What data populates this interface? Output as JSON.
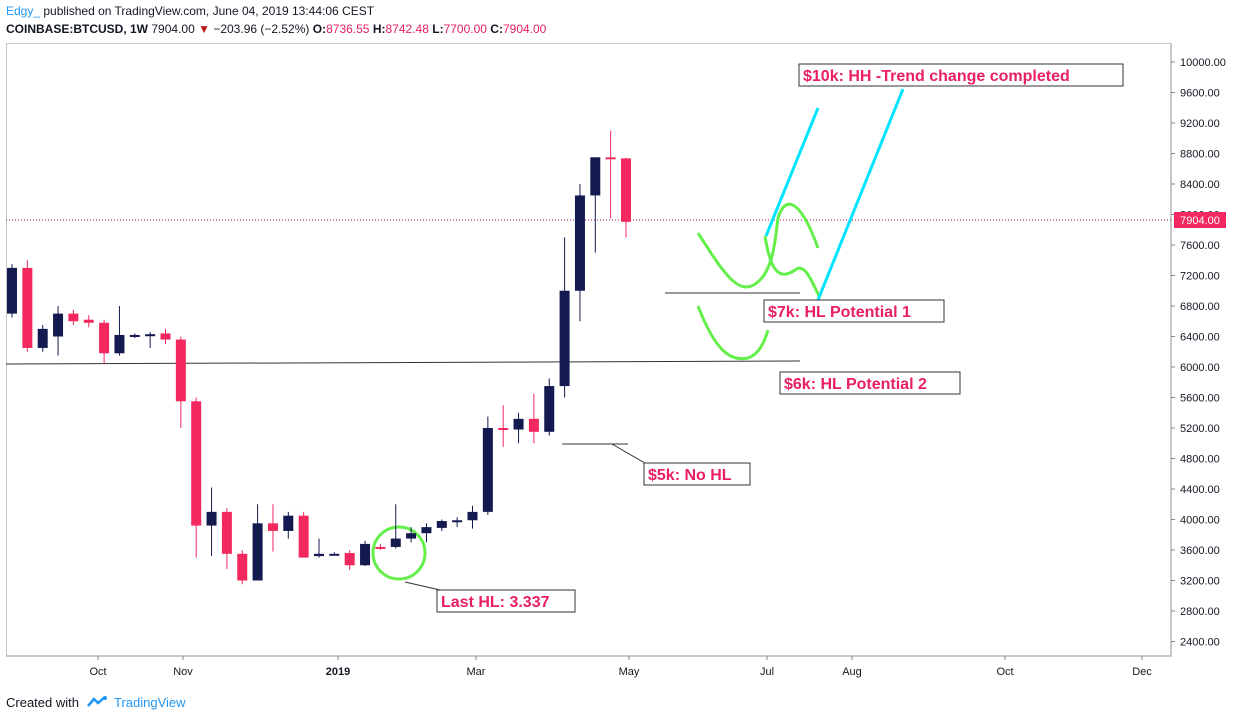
{
  "header": {
    "user": "Edgy_",
    "published_text": "published on TradingView.com, June 04, 2019 13:44:06 CEST",
    "symbol": "COINBASE:BTCUSD, 1W",
    "last": "7904.00",
    "change_arrow": "▼",
    "change": "−203.96 (−2.52%)",
    "o_label": "O:",
    "o_value": "8736.55",
    "h_label": "H:",
    "h_value": "8742.48",
    "l_label": "L:",
    "l_value": "7700.00",
    "c_label": "C:",
    "c_value": "7904.00"
  },
  "footer": {
    "created_with": "Created with",
    "brand": "TradingView"
  },
  "colors": {
    "up": "#131a4f",
    "down": "#f2285f",
    "annotation": "#e91e63",
    "cyan": "#00e5ff",
    "green": "#64ef4a",
    "price_line": "#9c1b5b"
  },
  "chart_data": {
    "type": "candlestick",
    "symbol": "COINBASE:BTCUSD",
    "interval": "1W",
    "ylim": [
      2000,
      10500
    ],
    "y_ticks": [
      "10000.00",
      "9600.00",
      "9200.00",
      "8800.00",
      "8400.00",
      "8000.00",
      "7600.00",
      "7200.00",
      "6800.00",
      "6400.00",
      "6000.00",
      "5600.00",
      "5200.00",
      "4800.00",
      "4400.00",
      "4000.00",
      "3600.00",
      "3200.00",
      "2800.00",
      "2400.00"
    ],
    "x_ticks": [
      "Oct",
      "Nov",
      "2019",
      "Mar",
      "May",
      "Jul",
      "Aug",
      "Oct",
      "Dec"
    ],
    "current_price_label": "7904.00",
    "candles": [
      {
        "o": 6700,
        "h": 7350,
        "l": 6650,
        "c": 7300
      },
      {
        "o": 7300,
        "h": 7400,
        "l": 6200,
        "c": 6250
      },
      {
        "o": 6250,
        "h": 6550,
        "l": 6200,
        "c": 6500
      },
      {
        "o": 6400,
        "h": 6800,
        "l": 6150,
        "c": 6700
      },
      {
        "o": 6700,
        "h": 6750,
        "l": 6550,
        "c": 6600
      },
      {
        "o": 6620,
        "h": 6680,
        "l": 6520,
        "c": 6580
      },
      {
        "o": 6580,
        "h": 6620,
        "l": 6050,
        "c": 6180
      },
      {
        "o": 6180,
        "h": 6800,
        "l": 6150,
        "c": 6420
      },
      {
        "o": 6410,
        "h": 6440,
        "l": 6380,
        "c": 6420
      },
      {
        "o": 6420,
        "h": 6460,
        "l": 6250,
        "c": 6430
      },
      {
        "o": 6440,
        "h": 6500,
        "l": 6300,
        "c": 6360
      },
      {
        "o": 6360,
        "h": 6400,
        "l": 5200,
        "c": 5550
      },
      {
        "o": 5550,
        "h": 5600,
        "l": 3500,
        "c": 3920
      },
      {
        "o": 3920,
        "h": 4420,
        "l": 3520,
        "c": 4100
      },
      {
        "o": 4100,
        "h": 4150,
        "l": 3350,
        "c": 3550
      },
      {
        "o": 3550,
        "h": 3600,
        "l": 3150,
        "c": 3200
      },
      {
        "o": 3200,
        "h": 4200,
        "l": 3200,
        "c": 3950
      },
      {
        "o": 3950,
        "h": 4200,
        "l": 3580,
        "c": 3850
      },
      {
        "o": 3850,
        "h": 4100,
        "l": 3750,
        "c": 4050
      },
      {
        "o": 4050,
        "h": 4100,
        "l": 3550,
        "c": 3500
      },
      {
        "o": 3520,
        "h": 3750,
        "l": 3500,
        "c": 3550
      },
      {
        "o": 3550,
        "h": 3570,
        "l": 3530,
        "c": 3550
      },
      {
        "o": 3560,
        "h": 3600,
        "l": 3337,
        "c": 3400
      },
      {
        "o": 3400,
        "h": 3720,
        "l": 3390,
        "c": 3680
      },
      {
        "o": 3640,
        "h": 3680,
        "l": 3600,
        "c": 3620
      },
      {
        "o": 3640,
        "h": 4200,
        "l": 3620,
        "c": 3750
      },
      {
        "o": 3750,
        "h": 3900,
        "l": 3700,
        "c": 3820
      },
      {
        "o": 3820,
        "h": 3950,
        "l": 3700,
        "c": 3900
      },
      {
        "o": 3890,
        "h": 4000,
        "l": 3850,
        "c": 3980
      },
      {
        "o": 3970,
        "h": 4030,
        "l": 3900,
        "c": 3990
      },
      {
        "o": 3990,
        "h": 4180,
        "l": 3880,
        "c": 4100
      },
      {
        "o": 4100,
        "h": 5350,
        "l": 4060,
        "c": 5200
      },
      {
        "o": 5200,
        "h": 5500,
        "l": 4950,
        "c": 5180
      },
      {
        "o": 5180,
        "h": 5400,
        "l": 5000,
        "c": 5320
      },
      {
        "o": 5320,
        "h": 5650,
        "l": 5000,
        "c": 5150
      },
      {
        "o": 5150,
        "h": 5850,
        "l": 5100,
        "c": 5750
      },
      {
        "o": 5750,
        "h": 7700,
        "l": 5600,
        "c": 7000
      },
      {
        "o": 7000,
        "h": 8400,
        "l": 6600,
        "c": 8250
      },
      {
        "o": 8250,
        "h": 8750,
        "l": 7500,
        "c": 8750
      },
      {
        "o": 8750,
        "h": 9100,
        "l": 7950,
        "c": 8736
      },
      {
        "o": 8736,
        "h": 8742,
        "l": 7700,
        "c": 7904
      }
    ],
    "levels": [
      {
        "label": "$7k: HL Potential 1",
        "price": 6950
      },
      {
        "label": "$6k: HL Potential 2",
        "price": 6050
      },
      {
        "label": "$5k: No HL",
        "price": 4970
      },
      {
        "label": "Last HL: 3.337",
        "price": 3337
      },
      {
        "label": "$10k: HH -Trend change completed",
        "price": 10000
      }
    ]
  }
}
